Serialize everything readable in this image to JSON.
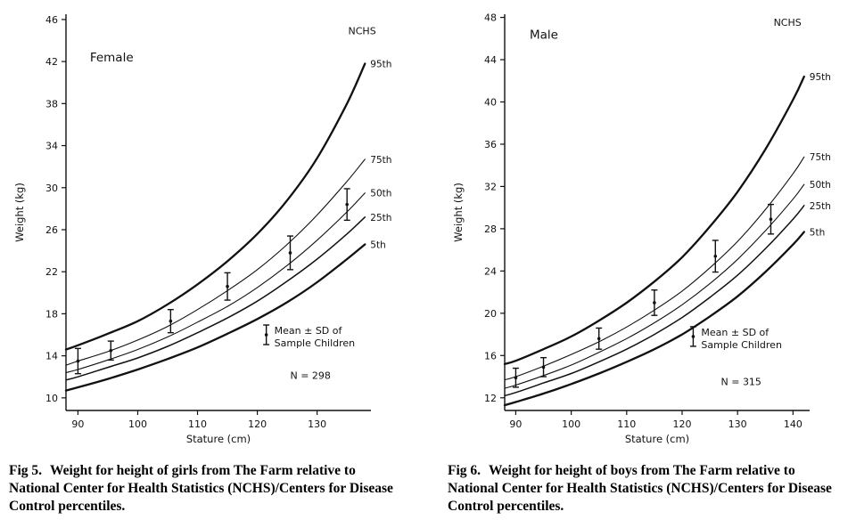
{
  "page": {
    "background": "#ffffff",
    "ink_color": "#111111"
  },
  "figures": [
    {
      "caption_label": "Fig 5.",
      "caption_text": "Weight for height of girls from The Farm relative to National Center for Health Statistics (NCHS)/Centers for Disease Control percentiles."
    },
    {
      "caption_label": "Fig 6.",
      "caption_text": "Weight for height of boys from The Farm relative to National Center for Health Statistics (NCHS)/Centers for Disease Control percentiles."
    }
  ],
  "chart_data": [
    {
      "type": "line",
      "title": "Female",
      "title_pos": [
        92,
        42
      ],
      "xlabel": "Stature (cm)",
      "ylabel": "Weight (kg)",
      "xlim": [
        88,
        139
      ],
      "ylim": [
        8.8,
        46.5
      ],
      "xticks": [
        90,
        100,
        110,
        120,
        130
      ],
      "yticks": [
        10,
        14,
        18,
        22,
        26,
        30,
        34,
        38,
        42,
        46
      ],
      "grid": false,
      "corner_label": "NCHS",
      "corner_label_pos": [
        135.2,
        44.6
      ],
      "series": [
        {
          "name": "95th",
          "lw": 2.3,
          "x": [
            88,
            90,
            95,
            100,
            105,
            110,
            115,
            120,
            125,
            130,
            135,
            138
          ],
          "y": [
            14.6,
            15.0,
            16.1,
            17.3,
            18.9,
            20.8,
            23.0,
            25.6,
            28.8,
            32.8,
            38.0,
            41.8
          ]
        },
        {
          "name": "75th",
          "lw": 1.1,
          "x": [
            88,
            90,
            95,
            100,
            105,
            110,
            115,
            120,
            125,
            130,
            135,
            138
          ],
          "y": [
            13.1,
            13.5,
            14.4,
            15.5,
            16.8,
            18.4,
            20.2,
            22.2,
            24.6,
            27.4,
            30.6,
            32.7
          ]
        },
        {
          "name": "50th",
          "lw": 1.1,
          "x": [
            88,
            90,
            95,
            100,
            105,
            110,
            115,
            120,
            125,
            130,
            135,
            138
          ],
          "y": [
            12.4,
            12.7,
            13.6,
            14.6,
            15.8,
            17.2,
            18.7,
            20.5,
            22.6,
            25.0,
            27.7,
            29.5
          ]
        },
        {
          "name": "25th",
          "lw": 1.5,
          "x": [
            88,
            90,
            95,
            100,
            105,
            110,
            115,
            120,
            125,
            130,
            135,
            138
          ],
          "y": [
            11.7,
            12.0,
            12.9,
            13.8,
            14.9,
            16.2,
            17.6,
            19.2,
            21.1,
            23.2,
            25.6,
            27.2
          ]
        },
        {
          "name": "5th",
          "lw": 2.3,
          "x": [
            88,
            90,
            95,
            100,
            105,
            110,
            115,
            120,
            125,
            130,
            135,
            138
          ],
          "y": [
            10.7,
            11.0,
            11.8,
            12.7,
            13.7,
            14.8,
            16.1,
            17.5,
            19.1,
            21.0,
            23.2,
            24.6
          ]
        }
      ],
      "sample": {
        "legend_line1": "Mean ± SD of",
        "legend_line2": "Sample Children",
        "n_label": "N = 298",
        "legend_pos": [
          121.5,
          16.0
        ],
        "n_pos": [
          125.5,
          11.8
        ],
        "points": [
          {
            "x": 90,
            "mean": 13.5,
            "sd": 1.2
          },
          {
            "x": 95.5,
            "mean": 14.5,
            "sd": 0.9
          },
          {
            "x": 105.5,
            "mean": 17.3,
            "sd": 1.1
          },
          {
            "x": 115,
            "mean": 20.6,
            "sd": 1.3
          },
          {
            "x": 125.5,
            "mean": 23.8,
            "sd": 1.6
          },
          {
            "x": 135,
            "mean": 28.4,
            "sd": 1.5
          }
        ]
      }
    },
    {
      "type": "line",
      "title": "Male",
      "title_pos": [
        92.5,
        46.0
      ],
      "xlabel": "Stature (cm)",
      "ylabel": "Weight (kg)",
      "xlim": [
        88,
        143
      ],
      "ylim": [
        10.8,
        48.3
      ],
      "xticks": [
        90,
        100,
        110,
        120,
        130,
        140
      ],
      "yticks": [
        12,
        16,
        20,
        24,
        28,
        32,
        36,
        40,
        44,
        48
      ],
      "grid": false,
      "corner_label": "NCHS",
      "corner_label_pos": [
        136.5,
        47.2
      ],
      "series": [
        {
          "name": "95th",
          "lw": 2.3,
          "x": [
            88,
            90,
            95,
            100,
            105,
            110,
            115,
            120,
            125,
            130,
            135,
            140,
            142
          ],
          "y": [
            15.2,
            15.5,
            16.6,
            17.8,
            19.3,
            21.0,
            23.0,
            25.3,
            28.2,
            31.5,
            35.5,
            40.2,
            42.4
          ]
        },
        {
          "name": "75th",
          "lw": 1.1,
          "x": [
            88,
            90,
            95,
            100,
            105,
            110,
            115,
            120,
            125,
            130,
            135,
            140,
            142
          ],
          "y": [
            13.7,
            14.0,
            15.0,
            16.1,
            17.3,
            18.7,
            20.3,
            22.1,
            24.3,
            26.8,
            29.8,
            33.2,
            34.8
          ]
        },
        {
          "name": "50th",
          "lw": 1.1,
          "x": [
            88,
            90,
            95,
            100,
            105,
            110,
            115,
            120,
            125,
            130,
            135,
            140,
            142
          ],
          "y": [
            12.9,
            13.2,
            14.1,
            15.1,
            16.3,
            17.6,
            19.1,
            20.8,
            22.8,
            25.1,
            27.8,
            30.8,
            32.2
          ]
        },
        {
          "name": "25th",
          "lw": 1.5,
          "x": [
            88,
            90,
            95,
            100,
            105,
            110,
            115,
            120,
            125,
            130,
            135,
            140,
            142
          ],
          "y": [
            12.2,
            12.5,
            13.4,
            14.3,
            15.4,
            16.6,
            18.0,
            19.6,
            21.5,
            23.6,
            26.1,
            28.9,
            30.2
          ]
        },
        {
          "name": "5th",
          "lw": 2.3,
          "x": [
            88,
            90,
            95,
            100,
            105,
            110,
            115,
            120,
            125,
            130,
            135,
            140,
            142
          ],
          "y": [
            11.3,
            11.6,
            12.4,
            13.3,
            14.3,
            15.4,
            16.6,
            18.0,
            19.7,
            21.6,
            23.9,
            26.5,
            27.7
          ]
        }
      ],
      "sample": {
        "legend_line1": "Mean ± SD of",
        "legend_line2": "Sample Children",
        "n_label": "N = 315",
        "legend_pos": [
          122,
          17.8
        ],
        "n_pos": [
          127,
          13.2
        ],
        "points": [
          {
            "x": 90,
            "mean": 13.9,
            "sd": 0.9
          },
          {
            "x": 95,
            "mean": 14.9,
            "sd": 0.9
          },
          {
            "x": 105,
            "mean": 17.6,
            "sd": 1.0
          },
          {
            "x": 115,
            "mean": 21.0,
            "sd": 1.2
          },
          {
            "x": 126,
            "mean": 25.4,
            "sd": 1.5
          },
          {
            "x": 136,
            "mean": 28.9,
            "sd": 1.4
          }
        ]
      }
    }
  ]
}
